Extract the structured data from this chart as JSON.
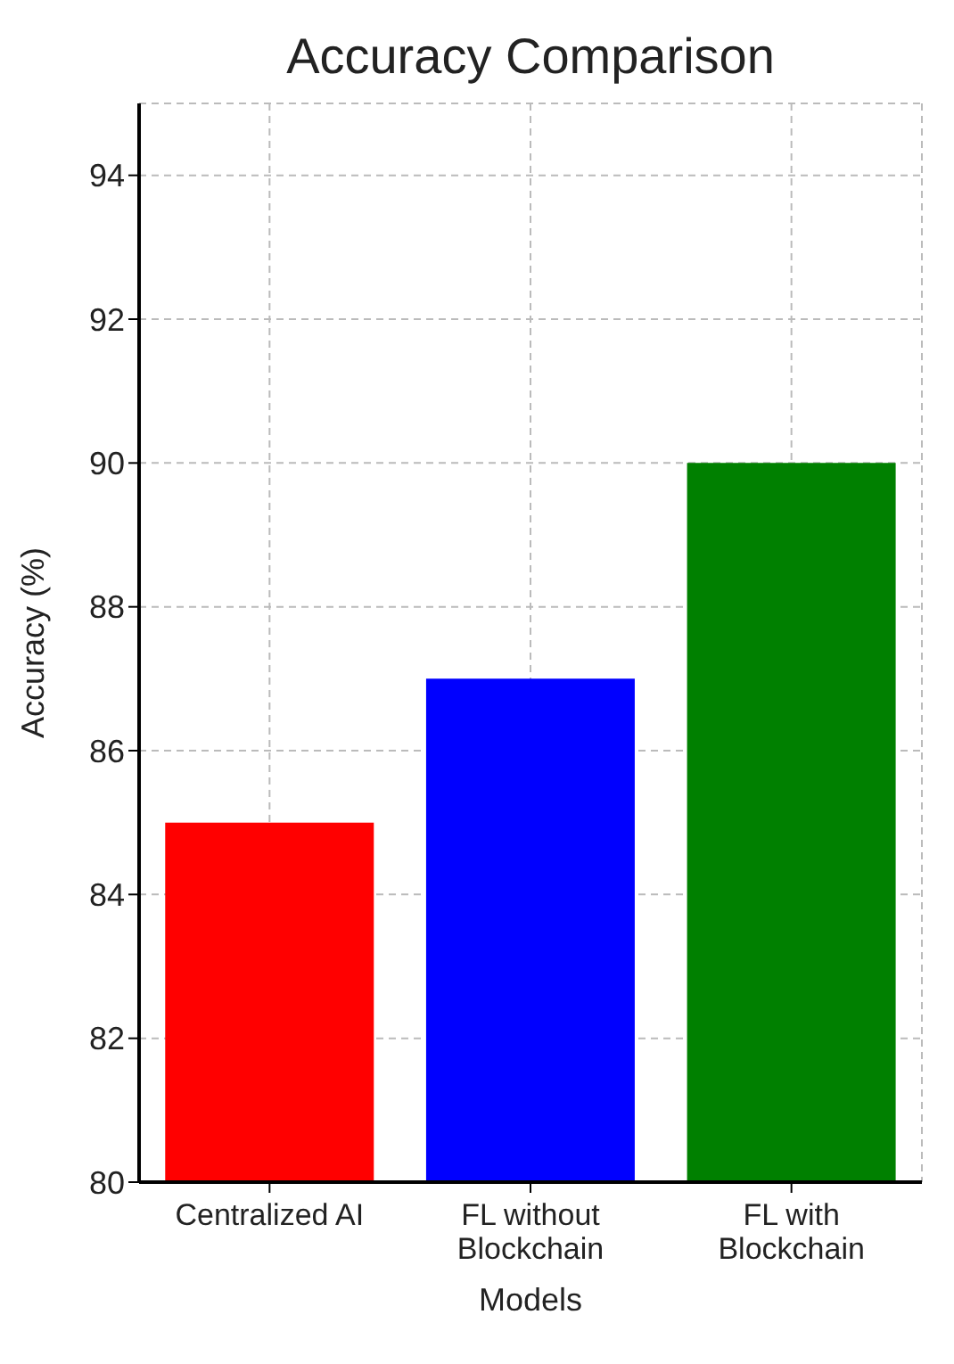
{
  "chart_data": {
    "type": "bar",
    "title": "Accuracy Comparison",
    "xlabel": "Models",
    "ylabel": "Accuracy (%)",
    "categories": [
      "Centralized AI",
      "FL without Blockchain",
      "FL with Blockchain"
    ],
    "values": [
      85,
      87,
      90
    ],
    "colors": [
      "#ff0000",
      "#0000ff",
      "#008000"
    ],
    "ylim": [
      80,
      95
    ],
    "yticks": [
      80,
      82,
      84,
      86,
      88,
      90,
      92,
      94
    ],
    "grid": true
  }
}
